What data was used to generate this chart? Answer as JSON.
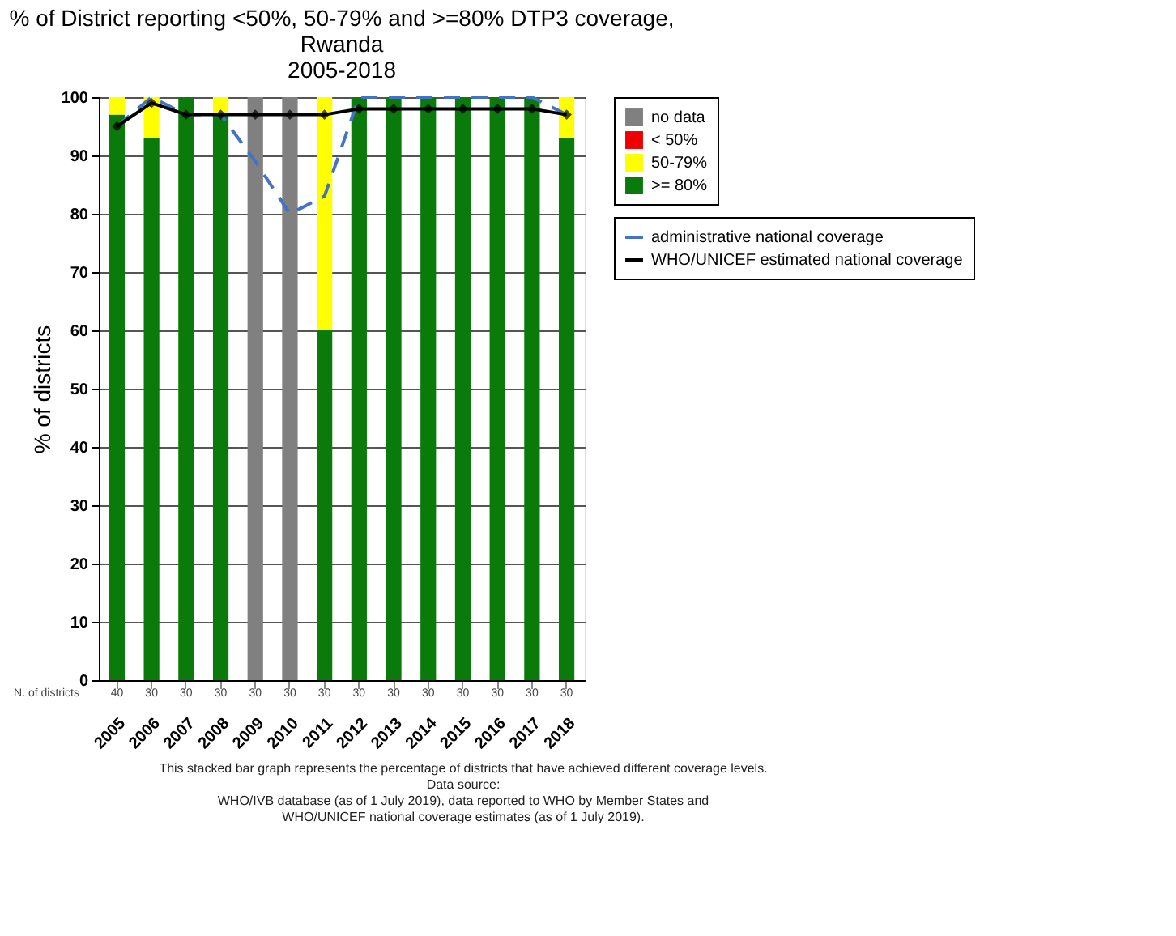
{
  "chart_data": {
    "type": "bar",
    "stacked": true,
    "title": "% of District reporting <50%, 50-79% and >=80% DTP3 coverage, Rwanda",
    "subtitle": "2005-2018",
    "ylabel": "% of districts",
    "categories": [
      "2005",
      "2006",
      "2007",
      "2008",
      "2009",
      "2010",
      "2011",
      "2012",
      "2013",
      "2014",
      "2015",
      "2016",
      "2017",
      "2018"
    ],
    "series": [
      {
        "name": ">= 80%",
        "color": "#0a7a0a",
        "values": [
          97,
          93,
          100,
          97,
          null,
          null,
          60,
          100,
          100,
          100,
          100,
          100,
          100,
          93
        ]
      },
      {
        "name": "50-79%",
        "color": "#ffff00",
        "values": [
          3,
          7,
          null,
          3,
          null,
          null,
          40,
          null,
          null,
          null,
          null,
          null,
          null,
          7
        ]
      },
      {
        "name": "< 50%",
        "color": "#ee0000",
        "values": [
          null,
          null,
          null,
          null,
          null,
          null,
          null,
          null,
          null,
          null,
          null,
          null,
          null,
          null
        ]
      },
      {
        "name": "no data",
        "color": "#808080",
        "values": [
          null,
          null,
          null,
          null,
          100,
          100,
          null,
          null,
          null,
          null,
          null,
          null,
          null,
          null
        ]
      },
      {
        "name": "administrative national coverage",
        "type": "line",
        "line_style": "dashed",
        "marker": "none",
        "color": "#4472c4",
        "values": [
          95,
          100,
          97,
          97,
          89,
          80,
          83,
          100,
          100,
          100,
          100,
          100,
          100,
          97
        ]
      },
      {
        "name": "WHO/UNICEF estimated national coverage",
        "type": "line",
        "line_style": "solid",
        "marker": "diamond",
        "color": "#000000",
        "values": [
          95,
          99,
          97,
          97,
          97,
          97,
          97,
          98,
          98,
          98,
          98,
          98,
          98,
          97
        ]
      }
    ],
    "ylim": [
      0,
      100
    ],
    "yticks": [
      0,
      10,
      20,
      30,
      40,
      50,
      60,
      70,
      80,
      90,
      100
    ],
    "grid": "y",
    "legend": "right",
    "annotations": [
      "N. of districts",
      "40",
      "30",
      "30",
      "30",
      "30",
      "30",
      "30",
      "30",
      "30",
      "30",
      "30",
      "30",
      "30",
      "30",
      "This stacked bar graph represents the percentage of districts that have achieved different coverage levels.",
      "Data source:",
      "WHO/IVB database (as of 1 July 2019), data reported to WHO by Member States and",
      "WHO/UNICEF national coverage estimates (as of 1 July 2019)."
    ]
  }
}
